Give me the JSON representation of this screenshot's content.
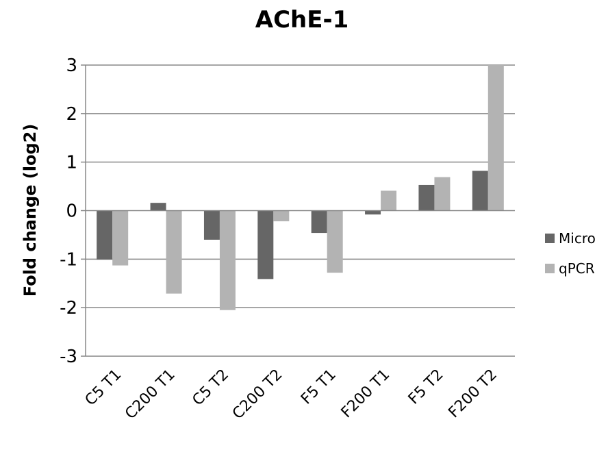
{
  "chart_data": {
    "type": "bar",
    "title": "AChE-1",
    "ylabel": "Fold change (log2)",
    "xlabel": "",
    "ylim": [
      -3,
      3
    ],
    "yticks": [
      -3,
      -2,
      -1,
      0,
      1,
      2,
      3
    ],
    "grid": true,
    "legend_position": "right",
    "categories": [
      "C5 T1",
      "C200 T1",
      "C5 T2",
      "C200 T2",
      "F5 T1",
      "F200 T1",
      "F5 T2",
      "F200 T2"
    ],
    "series": [
      {
        "name": "Micro",
        "color": "#666666",
        "values": [
          -1.01,
          0.16,
          -0.6,
          -1.41,
          -0.46,
          -0.08,
          0.53,
          0.82
        ]
      },
      {
        "name": "qPCR",
        "color": "#b3b3b3",
        "values": [
          -1.13,
          -1.71,
          -2.05,
          -0.22,
          -1.28,
          0.41,
          0.69,
          3.0
        ]
      }
    ]
  }
}
